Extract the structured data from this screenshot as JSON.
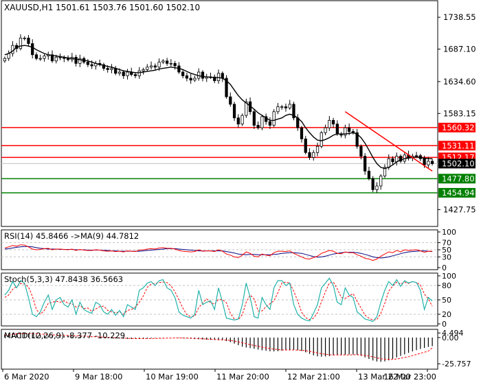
{
  "header": {
    "symbol_line": "XAUUSD,H1  1501.61 1503.76 1501.60 1502.10"
  },
  "colors": {
    "candle_up": "#ffffff",
    "candle_down": "#000000",
    "ma_line": "#000000",
    "resistance": "#ff0000",
    "support": "#008000",
    "trendline": "#ff0000",
    "rsi_line": "#ff0000",
    "rsi_ma": "#000080",
    "stoch_main": "#20b2aa",
    "stoch_signal": "#ff0000",
    "macd_hist": "#000000",
    "macd_signal": "#ff0000"
  },
  "chart_data": [
    {
      "type": "line",
      "name": "price",
      "y_ticks": [
        "1738.55",
        "1687.10",
        "1634.60",
        "1583.15",
        "1502.10",
        "1427.75"
      ],
      "y_tick_values": [
        1738.55,
        1687.1,
        1634.6,
        1583.15,
        1502.1,
        1427.75
      ],
      "ylim": [
        1405,
        1762
      ],
      "current_price": "1502.10",
      "x_labels": [
        "6 Mar 2020",
        "9 Mar 18:00",
        "10 Mar 19:00",
        "11 Mar 20:00",
        "12 Mar 21:00",
        "13 Mar 22:00",
        "16 Mar 23:00"
      ],
      "closes": [
        1672,
        1680,
        1693,
        1688,
        1705,
        1705,
        1696,
        1678,
        1672,
        1672,
        1676,
        1678,
        1668,
        1674,
        1674,
        1672,
        1670,
        1674,
        1664,
        1672,
        1666,
        1662,
        1660,
        1664,
        1662,
        1656,
        1654,
        1656,
        1648,
        1650,
        1644,
        1650,
        1646,
        1644,
        1652,
        1654,
        1658,
        1660,
        1658,
        1666,
        1668,
        1664,
        1664,
        1660,
        1650,
        1644,
        1640,
        1637,
        1640,
        1650,
        1640,
        1642,
        1642,
        1636,
        1648,
        1640,
        1610,
        1598,
        1576,
        1566,
        1580,
        1602,
        1586,
        1564,
        1560,
        1578,
        1570,
        1564,
        1586,
        1594,
        1594,
        1592,
        1598,
        1576,
        1560,
        1542,
        1520,
        1512,
        1520,
        1530,
        1552,
        1560,
        1572,
        1566,
        1550,
        1548,
        1560,
        1554,
        1552,
        1530,
        1514,
        1490,
        1478,
        1460,
        1466,
        1482,
        1496,
        1510,
        1505,
        1514,
        1506,
        1516,
        1512,
        1514,
        1515,
        1510,
        1500,
        1506,
        1502
      ],
      "ma_line": [
        1678,
        1680,
        1684,
        1690,
        1692,
        1693,
        1692,
        1690,
        1686,
        1683,
        1680,
        1678,
        1677,
        1676,
        1675,
        1674,
        1673,
        1672,
        1671,
        1670,
        1669,
        1668,
        1666,
        1664,
        1662,
        1661,
        1659,
        1658,
        1656,
        1654,
        1652,
        1651,
        1650,
        1649,
        1649,
        1650,
        1651,
        1652,
        1653,
        1655,
        1656,
        1657,
        1658,
        1657,
        1656,
        1654,
        1651,
        1648,
        1646,
        1644,
        1643,
        1642,
        1642,
        1641,
        1641,
        1640,
        1636,
        1630,
        1621,
        1612,
        1605,
        1600,
        1595,
        1590,
        1584,
        1580,
        1576,
        1572,
        1572,
        1574,
        1576,
        1580,
        1582,
        1580,
        1576,
        1570,
        1560,
        1552,
        1545,
        1540,
        1539,
        1541,
        1544,
        1548,
        1550,
        1550,
        1550,
        1551,
        1552,
        1550,
        1544,
        1535,
        1524,
        1512,
        1502,
        1496,
        1494,
        1496,
        1500,
        1505,
        1508,
        1510,
        1511,
        1512,
        1513,
        1512,
        1511,
        1510,
        1510
      ],
      "resistance_levels": [
        "1560.32",
        "1531.11",
        "1512.17"
      ],
      "resistance_values": [
        1560.32,
        1531.11,
        1512.17
      ],
      "support_levels": [
        "1477.80",
        "1454.94"
      ],
      "support_values": [
        1477.8,
        1454.94
      ],
      "trendline": {
        "from_bar": 86,
        "from_value": 1586,
        "to_bar": 108,
        "to_value": 1490
      }
    },
    {
      "type": "line",
      "name": "rsi",
      "label": "RSI(14) 45.8466  ->MA(9) 44.7812",
      "y_ticks": [
        "100",
        "70",
        "50",
        "30",
        "0"
      ],
      "y_tick_values": [
        100,
        70,
        50,
        30,
        0
      ],
      "ylim": [
        0,
        100
      ],
      "rsi": [
        55,
        58,
        62,
        60,
        64,
        63,
        58,
        52,
        50,
        51,
        53,
        54,
        50,
        52,
        52,
        51,
        50,
        52,
        48,
        51,
        49,
        48,
        48,
        50,
        49,
        47,
        46,
        47,
        45,
        46,
        44,
        47,
        46,
        45,
        49,
        50,
        52,
        53,
        52,
        55,
        56,
        54,
        54,
        52,
        48,
        46,
        45,
        44,
        45,
        50,
        46,
        47,
        47,
        45,
        50,
        46,
        38,
        35,
        30,
        28,
        35,
        44,
        40,
        32,
        30,
        38,
        35,
        33,
        42,
        46,
        46,
        45,
        47,
        40,
        35,
        30,
        25,
        24,
        28,
        32,
        40,
        44,
        48,
        46,
        40,
        39,
        44,
        42,
        42,
        36,
        32,
        26,
        24,
        20,
        24,
        32,
        38,
        44,
        42,
        48,
        44,
        50,
        48,
        49,
        50,
        47,
        43,
        46,
        45.8
      ],
      "rsi_ma": [
        52,
        53,
        55,
        57,
        58,
        59,
        59,
        58,
        56,
        54,
        53,
        52,
        52,
        52,
        51,
        51,
        51,
        51,
        50,
        50,
        50,
        49,
        49,
        49,
        49,
        48,
        48,
        47,
        47,
        46,
        46,
        46,
        46,
        46,
        46,
        47,
        48,
        49,
        50,
        51,
        52,
        53,
        53,
        53,
        52,
        51,
        50,
        49,
        48,
        47,
        47,
        47,
        47,
        47,
        47,
        47,
        45,
        43,
        41,
        38,
        37,
        36,
        37,
        37,
        36,
        36,
        36,
        36,
        37,
        38,
        40,
        41,
        42,
        42,
        41,
        40,
        37,
        34,
        31,
        29,
        30,
        32,
        35,
        38,
        40,
        42,
        43,
        43,
        43,
        42,
        40,
        37,
        34,
        30,
        28,
        27,
        28,
        30,
        33,
        36,
        39,
        42,
        44,
        45,
        46,
        47,
        47,
        46,
        44.8
      ]
    },
    {
      "type": "line",
      "name": "stochastic",
      "label": "Stoch(5,3,3) 47.8438 36.5663",
      "y_ticks": [
        "100",
        "80",
        "50",
        "20",
        "0"
      ],
      "y_tick_values": [
        100,
        80,
        50,
        20,
        0
      ],
      "ylim": [
        0,
        100
      ],
      "main": [
        60,
        70,
        88,
        75,
        90,
        85,
        55,
        20,
        15,
        25,
        45,
        60,
        30,
        50,
        55,
        40,
        35,
        50,
        20,
        45,
        30,
        25,
        22,
        45,
        40,
        25,
        20,
        30,
        18,
        28,
        15,
        40,
        35,
        30,
        70,
        75,
        85,
        88,
        80,
        90,
        92,
        75,
        70,
        55,
        25,
        18,
        15,
        12,
        20,
        70,
        40,
        45,
        48,
        30,
        75,
        45,
        12,
        10,
        8,
        10,
        40,
        85,
        55,
        15,
        12,
        55,
        40,
        30,
        75,
        90,
        90,
        80,
        85,
        40,
        20,
        12,
        8,
        6,
        22,
        40,
        75,
        85,
        95,
        80,
        45,
        40,
        75,
        60,
        55,
        25,
        18,
        10,
        8,
        5,
        15,
        45,
        70,
        88,
        80,
        92,
        78,
        90,
        85,
        88,
        86,
        70,
        30,
        55,
        47.8
      ],
      "signal": [
        55,
        60,
        72,
        78,
        84,
        83,
        77,
        57,
        30,
        20,
        28,
        43,
        45,
        47,
        45,
        48,
        43,
        42,
        35,
        38,
        32,
        33,
        26,
        31,
        36,
        37,
        28,
        25,
        23,
        25,
        20,
        28,
        30,
        35,
        45,
        58,
        76,
        83,
        84,
        86,
        87,
        86,
        79,
        67,
        50,
        33,
        19,
        15,
        16,
        34,
        43,
        52,
        44,
        41,
        51,
        50,
        44,
        22,
        10,
        9,
        19,
        45,
        60,
        52,
        27,
        27,
        36,
        42,
        48,
        65,
        85,
        87,
        85,
        68,
        48,
        24,
        13,
        9,
        12,
        23,
        46,
        67,
        85,
        87,
        73,
        55,
        53,
        58,
        63,
        47,
        33,
        18,
        12,
        8,
        9,
        22,
        43,
        68,
        79,
        87,
        83,
        87,
        84,
        88,
        86,
        81,
        62,
        52,
        36.6
      ]
    },
    {
      "type": "bar",
      "name": "macd",
      "label": "MACD(12,26,9) -8.377 -10.229",
      "y_ticks": [
        "4.494",
        "0.00",
        "-25.757"
      ],
      "y_tick_values": [
        4.494,
        0,
        -25.757
      ],
      "ylim": [
        -29,
        6
      ],
      "histogram": [
        3,
        4,
        4.5,
        4.2,
        4.4,
        4.3,
        4,
        3.5,
        3,
        2.6,
        2.3,
        2,
        1.8,
        1.6,
        1.5,
        1.4,
        1.3,
        1.2,
        1,
        0.9,
        0.7,
        0.5,
        0.3,
        0.1,
        -0.1,
        -0.3,
        -0.5,
        -0.7,
        -0.9,
        -1,
        -1.2,
        -1.3,
        -1.4,
        -1.4,
        -1.3,
        -1.1,
        -0.9,
        -0.7,
        -0.5,
        -0.3,
        -0.2,
        -0.1,
        0,
        -0.1,
        -0.3,
        -0.6,
        -0.9,
        -1.2,
        -1.5,
        -1.7,
        -1.9,
        -2.1,
        -2.3,
        -2.5,
        -2.6,
        -2.8,
        -3.5,
        -4.5,
        -6,
        -7.5,
        -9,
        -9.8,
        -10.4,
        -11,
        -11.8,
        -12.5,
        -13,
        -13.5,
        -13.6,
        -13.4,
        -13,
        -12.6,
        -12.2,
        -12,
        -12.4,
        -13.2,
        -14.5,
        -16,
        -17.5,
        -18.4,
        -18.8,
        -18.6,
        -18.2,
        -17.6,
        -17.2,
        -17,
        -16.8,
        -16.6,
        -16.6,
        -17,
        -18,
        -19.5,
        -21,
        -22.5,
        -23.5,
        -23.8,
        -23.4,
        -22.4,
        -21,
        -19.5,
        -18,
        -16.5,
        -15,
        -13.6,
        -12.4,
        -11.2,
        -10.2,
        -9.2,
        -8.4
      ],
      "signal": [
        2,
        2.6,
        3.2,
        3.6,
        3.8,
        3.9,
        3.9,
        3.8,
        3.6,
        3.4,
        3.2,
        2.9,
        2.7,
        2.5,
        2.3,
        2.1,
        2,
        1.8,
        1.7,
        1.5,
        1.4,
        1.2,
        1,
        0.8,
        0.6,
        0.4,
        0.2,
        0,
        -0.2,
        -0.4,
        -0.6,
        -0.8,
        -0.9,
        -1,
        -1.1,
        -1.1,
        -1.1,
        -1,
        -0.9,
        -0.8,
        -0.7,
        -0.6,
        -0.5,
        -0.4,
        -0.4,
        -0.5,
        -0.6,
        -0.7,
        -0.9,
        -1.1,
        -1.3,
        -1.5,
        -1.7,
        -1.9,
        -2.1,
        -2.3,
        -2.5,
        -2.9,
        -3.5,
        -4.3,
        -5.2,
        -6.1,
        -7,
        -7.8,
        -8.6,
        -9.4,
        -10.1,
        -10.8,
        -11.4,
        -11.8,
        -12.1,
        -12.2,
        -12.2,
        -12.2,
        -12.3,
        -12.5,
        -12.9,
        -13.5,
        -14.3,
        -15.1,
        -15.8,
        -16.4,
        -16.8,
        -17,
        -17.1,
        -17.1,
        -17.1,
        -17,
        -16.9,
        -16.9,
        -17.1,
        -17.5,
        -18.2,
        -19,
        -19.9,
        -20.7,
        -21.3,
        -21.5,
        -21.4,
        -21,
        -20.4,
        -19.6,
        -18.7,
        -17.7,
        -16.6,
        -15.5,
        -14.4,
        -13.3,
        -10.2
      ]
    }
  ]
}
